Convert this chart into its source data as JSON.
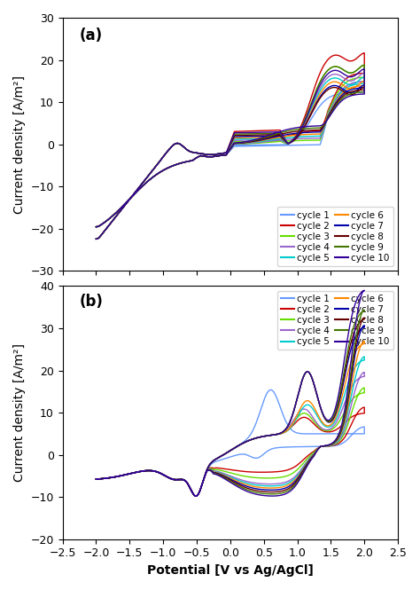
{
  "title_a": "(a)",
  "title_b": "(b)",
  "xlabel": "Potential [V vs Ag/AgCl]",
  "ylabel": "Current density [A/m²]",
  "xlim": [
    -2.5,
    2.5
  ],
  "ylim_a": [
    -30,
    30
  ],
  "ylim_b": [
    -20,
    40
  ],
  "xticks": [
    -2.5,
    -2.0,
    -1.5,
    -1.0,
    -0.5,
    0.0,
    0.5,
    1.0,
    1.5,
    2.0,
    2.5
  ],
  "yticks_a": [
    -30,
    -20,
    -10,
    0,
    10,
    20,
    30
  ],
  "yticks_b": [
    -20,
    -10,
    0,
    10,
    20,
    30,
    40
  ],
  "cycle_colors": {
    "1": "#6699ff",
    "2": "#cc0000",
    "3": "#66dd00",
    "4": "#9966cc",
    "5": "#00cccc",
    "6": "#ff8800",
    "7": "#0000aa",
    "8": "#660000",
    "9": "#447700",
    "10": "#330099"
  },
  "legend_fontsize": 7.5,
  "tick_fontsize": 9,
  "label_fontsize": 10,
  "background_color": "#ffffff"
}
